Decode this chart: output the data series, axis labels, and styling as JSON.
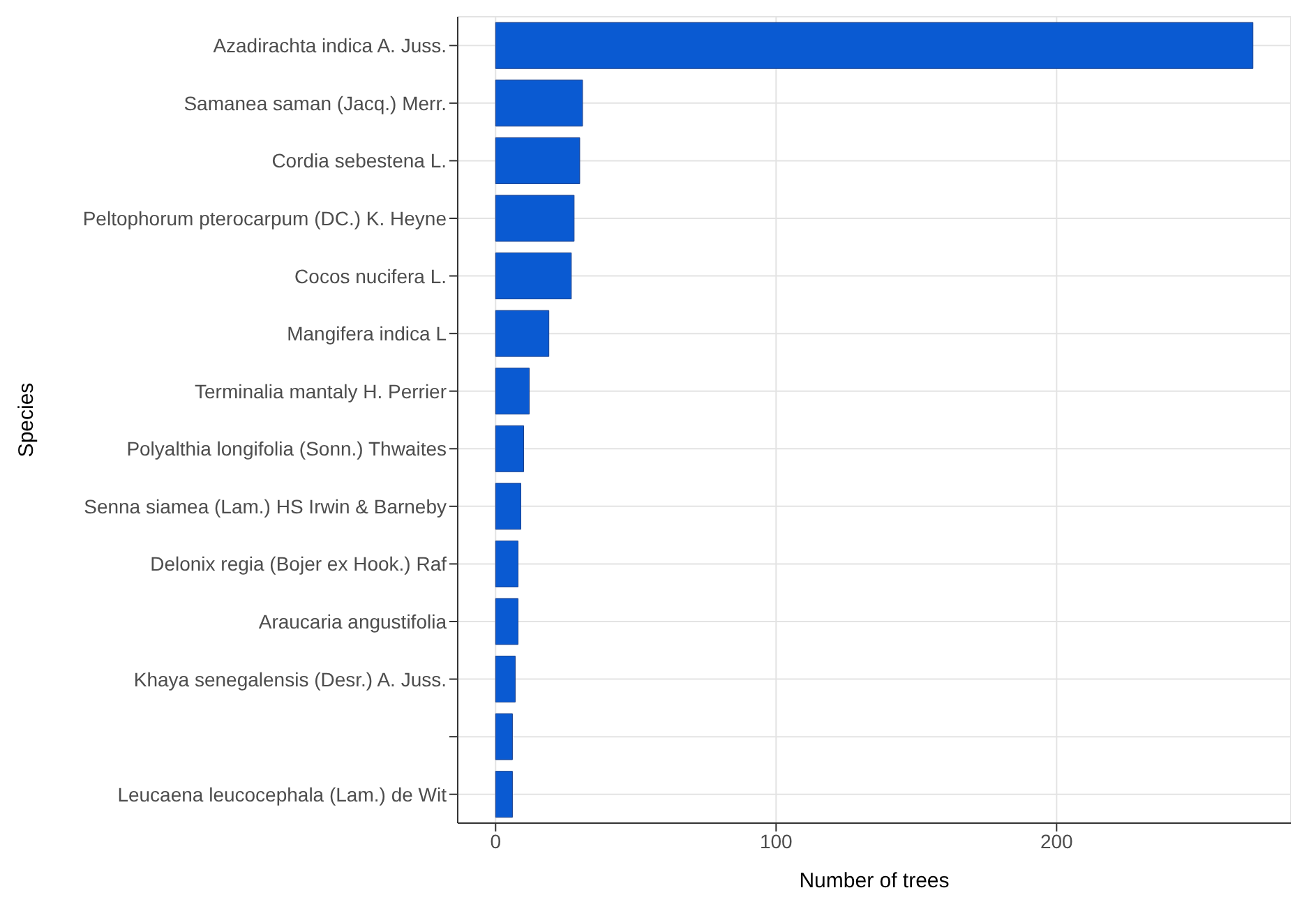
{
  "chart_data": {
    "type": "bar",
    "orientation": "horizontal",
    "xlabel": "Number of trees",
    "ylabel": "Species",
    "categories": [
      "Azadirachta indica A. Juss.",
      "Samanea saman (Jacq.) Merr.",
      "Cordia sebestena L.",
      "Peltophorum pterocarpum (DC.) K. Heyne",
      "Cocos nucifera L.",
      "Mangifera indica L",
      "Terminalia mantaly H. Perrier",
      "Polyalthia longifolia (Sonn.) Thwaites",
      "Senna siamea (Lam.) HS Irwin & Barneby",
      "Delonix regia (Bojer ex Hook.) Raf",
      "Araucaria angustifolia ",
      "Khaya senegalensis (Desr.) A. Juss.",
      null,
      "Leucaena leucocephala (Lam.) de Wit"
    ],
    "values": [
      270,
      31,
      30,
      28,
      27,
      19,
      12,
      10,
      9,
      8,
      8,
      7,
      6,
      6
    ],
    "color": "#0a5ad2",
    "xlim": [
      -13.5,
      283.5
    ],
    "xticks": [
      0,
      100,
      200
    ],
    "grid": true
  }
}
